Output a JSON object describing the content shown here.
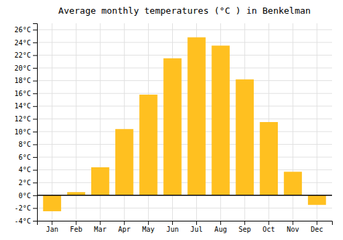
{
  "chart_data": {
    "type": "bar",
    "title": "Average monthly temperatures (°C ) in Benkelman",
    "categories": [
      "Jan",
      "Feb",
      "Mar",
      "Apr",
      "May",
      "Jun",
      "Jul",
      "Aug",
      "Sep",
      "Oct",
      "Nov",
      "Dec"
    ],
    "values": [
      -2.5,
      0.5,
      4.4,
      10.4,
      15.8,
      21.5,
      24.8,
      23.5,
      18.2,
      11.5,
      3.7,
      -1.5
    ],
    "color": "#FFC020",
    "ylim": [
      -4,
      27
    ],
    "yticks": [
      {
        "value": -4,
        "label": "-4°C"
      },
      {
        "value": -2,
        "label": "-2°C"
      },
      {
        "value": 0,
        "label": "0°C"
      },
      {
        "value": 2,
        "label": "2°C"
      },
      {
        "value": 4,
        "label": "4°C"
      },
      {
        "value": 6,
        "label": "6°C"
      },
      {
        "value": 8,
        "label": "8°C"
      },
      {
        "value": 10,
        "label": "10°C"
      },
      {
        "value": 12,
        "label": "12°C"
      },
      {
        "value": 14,
        "label": "14°C"
      },
      {
        "value": 16,
        "label": "16°C"
      },
      {
        "value": 18,
        "label": "18°C"
      },
      {
        "value": 20,
        "label": "20°C"
      },
      {
        "value": 22,
        "label": "22°C"
      },
      {
        "value": 24,
        "label": "24°C"
      },
      {
        "value": 26,
        "label": "26°C"
      }
    ],
    "grid": true
  }
}
